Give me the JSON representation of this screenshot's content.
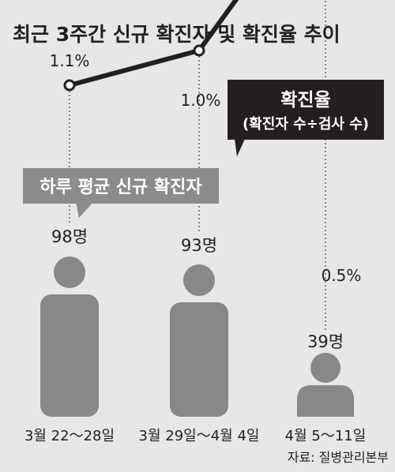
{
  "chart_data": {
    "type": "line",
    "title": "최근 3주간 신규 확진자 및 확진율 추이",
    "categories": [
      "3월 22～28일",
      "3월 29일～4월 4일",
      "4월 5～11일"
    ],
    "series": [
      {
        "name": "확진율",
        "subtitle": "(확진자 수÷검사 수)",
        "values": [
          1.1,
          1.0,
          0.5
        ],
        "labels": [
          "1.1%",
          "1.0%",
          "0.5%"
        ]
      },
      {
        "name": "하루 평균 신규 확진자",
        "values": [
          98,
          93,
          39
        ],
        "labels": [
          "98명",
          "93명",
          "39명"
        ]
      }
    ],
    "source": "자료: 질병관리본부"
  },
  "colors": {
    "background": "#e7e7e7",
    "line": "#231f20",
    "figure": "#888888",
    "callout_dark": "#231f20",
    "callout_gray": "#8c8c8c",
    "text": "#231f20"
  }
}
